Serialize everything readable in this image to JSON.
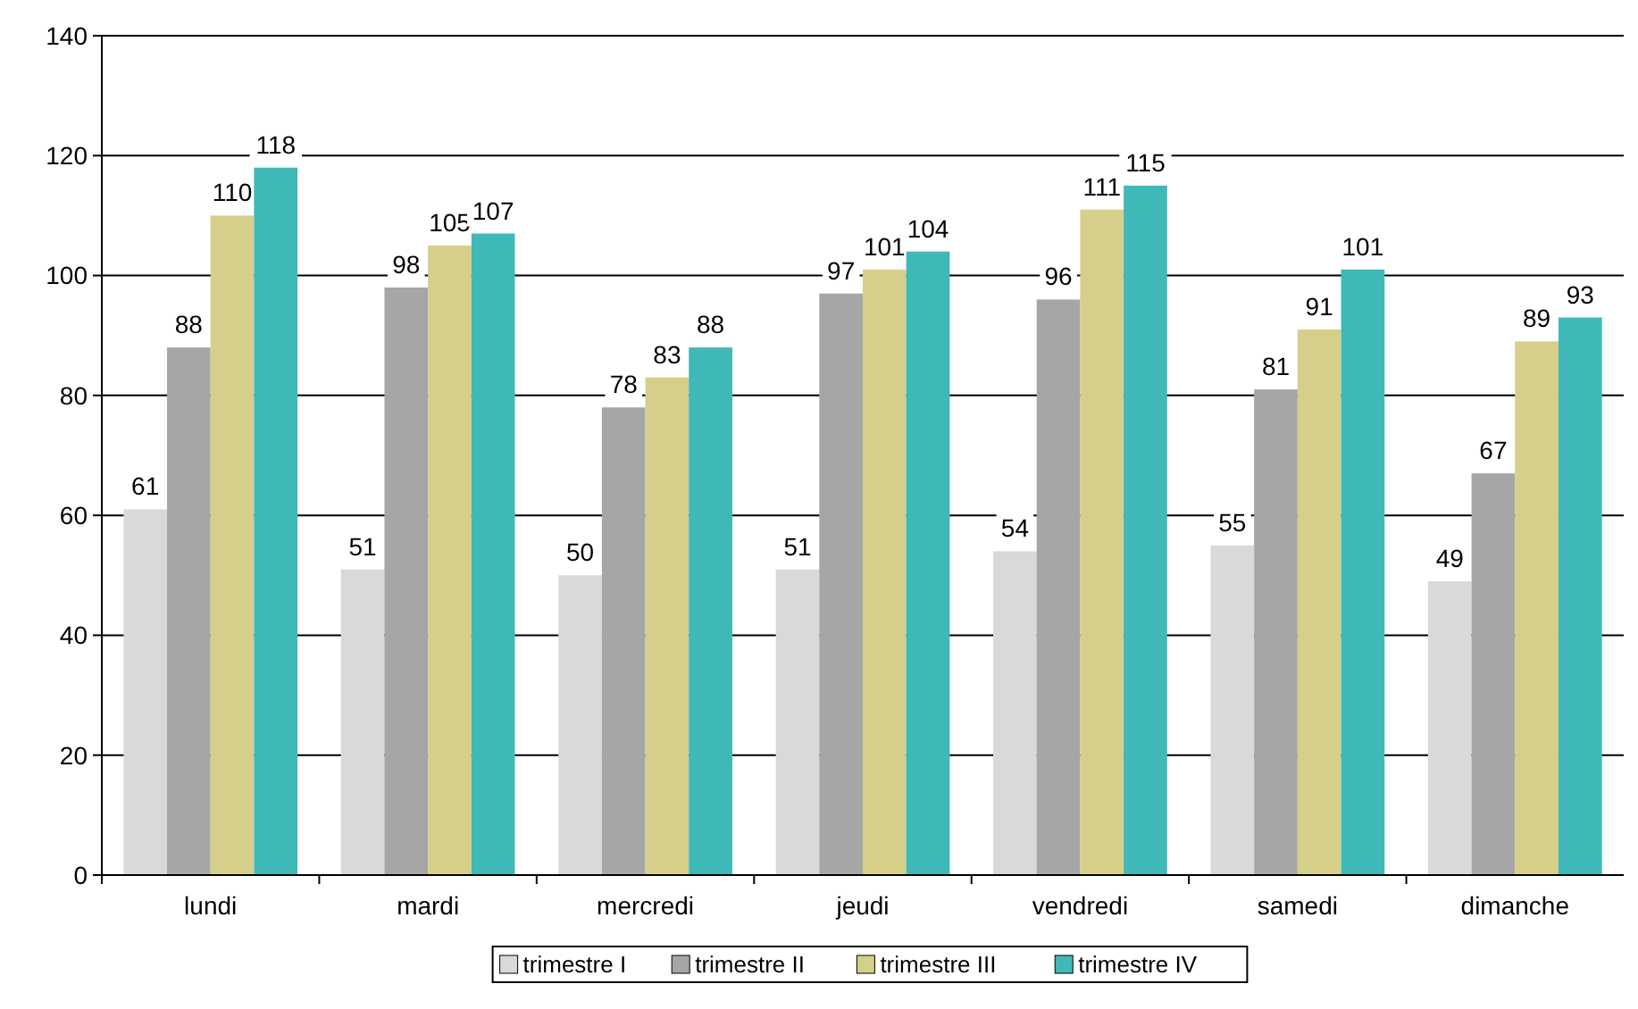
{
  "chart_data": {
    "type": "bar",
    "categories": [
      "lundi",
      "mardi",
      "mercredi",
      "jeudi",
      "vendredi",
      "samedi",
      "dimanche"
    ],
    "series": [
      {
        "name": "trimestre I",
        "color": "#d9d9d9",
        "values": [
          61,
          51,
          50,
          51,
          54,
          55,
          49
        ]
      },
      {
        "name": "trimestre II",
        "color": "#a6a6a6",
        "values": [
          88,
          98,
          78,
          97,
          96,
          81,
          67
        ]
      },
      {
        "name": "trimestre III",
        "color": "#d6cf8a",
        "values": [
          110,
          105,
          83,
          101,
          111,
          91,
          89
        ]
      },
      {
        "name": "trimestre IV",
        "color": "#3fb8b8",
        "values": [
          118,
          107,
          88,
          104,
          115,
          101,
          93
        ]
      }
    ],
    "ylim": [
      0,
      140
    ],
    "yticks": [
      0,
      20,
      40,
      60,
      80,
      100,
      120,
      140
    ],
    "grid": "y",
    "legend": "bottom",
    "data_labels": true
  }
}
